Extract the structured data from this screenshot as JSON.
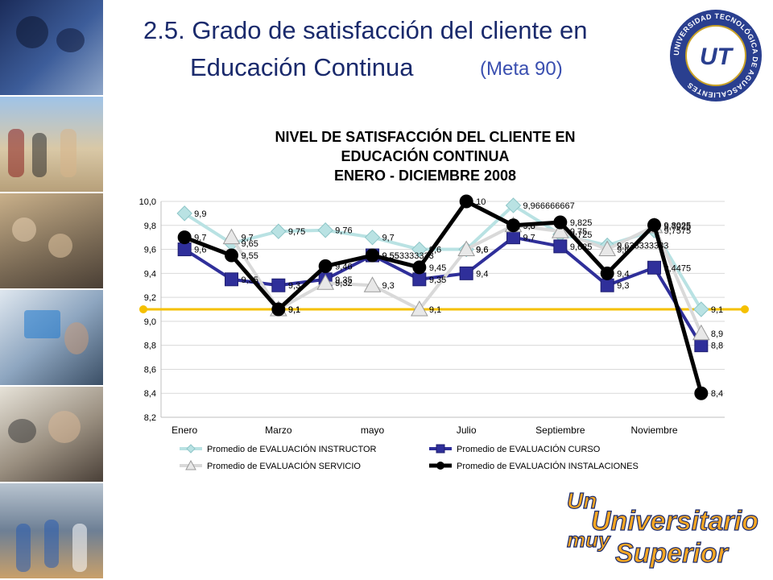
{
  "slide": {
    "title_line1": "2.5. Grado de satisfacción del cliente en",
    "title_line2": "Educación Continua",
    "meta": "(Meta 90)"
  },
  "logo": {
    "ring_text": "UNIVERSIDAD TECNOLÓGICA DE AGUASCALIENTES",
    "monogram": "UT"
  },
  "slogan": {
    "line1": "Un",
    "line2": "Universitario",
    "line3": "muy",
    "line4": "Superior"
  },
  "colors": {
    "title": "#1a2a6c",
    "instructor": "#b9e2e3",
    "curso": "#2f2f9a",
    "servicio": "#d9d9d9",
    "instalaciones": "#000000",
    "meta_line": "#f5c000",
    "slogan_fill": "#f5a623",
    "slogan_stroke": "#1a2a6c"
  },
  "chart_data": {
    "type": "line",
    "title_lines": [
      "NIVEL DE SATISFACCIÓN DEL CLIENTE EN",
      "EDUCACIÓN CONTINUA",
      "ENERO - DICIEMBRE 2008"
    ],
    "x_ticks": [
      "Enero",
      "Marzo",
      "mayo",
      "Julio",
      "Septiembre",
      "Noviembre"
    ],
    "categories_count": 12,
    "ylim": [
      8.2,
      10.0
    ],
    "y_ticks": [
      "10,0",
      "9,8",
      "9,6",
      "9,4",
      "9,2",
      "9,0",
      "8,8",
      "8,6",
      "8,4",
      "8,2"
    ],
    "y_tick_values": [
      10.0,
      9.8,
      9.6,
      9.4,
      9.2,
      9.0,
      8.8,
      8.6,
      8.4,
      8.2
    ],
    "grid": true,
    "legend_position": "bottom",
    "goal_value": 9.1,
    "series": [
      {
        "name": "Promedio de EVALUACIÓN INSTRUCTOR",
        "marker": "diamond",
        "values": [
          9.9,
          9.65,
          9.75,
          9.76,
          9.7,
          9.6,
          9.6,
          9.966666667,
          9.725,
          9.633333333,
          9.7575,
          9.1
        ],
        "labels": [
          "9,9",
          "9,65",
          "9,75",
          "9,76",
          "9,7",
          "9,6",
          "9,6",
          "9,966666667",
          "9,725",
          "9,633333333",
          "9,7575",
          "9,1"
        ]
      },
      {
        "name": "Promedio de EVALUACIÓN CURSO",
        "marker": "square",
        "values": [
          9.6,
          9.35,
          9.3,
          9.35,
          9.55,
          9.35,
          9.4,
          9.7,
          9.625,
          9.3,
          9.4475,
          8.8
        ],
        "labels": [
          "9,6",
          "9,35",
          "9,3",
          "9,35",
          "9,55",
          "9,35",
          "9,4",
          "9,7",
          "9,625",
          "9,3",
          "9,4475",
          "8,8"
        ]
      },
      {
        "name": "Promedio de EVALUACIÓN SERVICIO",
        "marker": "triangle",
        "values": [
          null,
          9.7,
          9.1,
          9.32,
          9.3,
          9.1,
          9.6,
          9.8,
          9.75,
          9.6,
          9.7925,
          8.9
        ],
        "labels": [
          "",
          "9,7",
          "9,1",
          "9,32",
          "9,3",
          "9,1",
          "9,6",
          "9,8",
          "9,75",
          "9,6",
          "9,7925",
          "8,9"
        ]
      },
      {
        "name": "Promedio de EVALUACIÓN INSTALACIONES",
        "marker": "circle",
        "values": [
          9.7,
          9.55,
          9.1,
          9.46,
          9.55,
          9.45,
          10.0,
          9.8,
          9.825,
          9.4,
          9.8025,
          8.4
        ],
        "labels": [
          "9,7",
          "9,55",
          "9,1",
          "9,46",
          "9,553333333",
          "9,45",
          "10",
          "9,8",
          "9,825",
          "9,4",
          "9,8025",
          "8,4"
        ]
      }
    ]
  }
}
